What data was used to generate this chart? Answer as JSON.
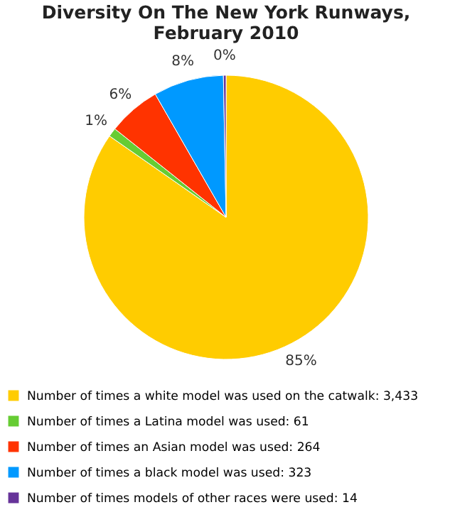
{
  "chart_data": {
    "type": "pie",
    "title": "Diversity On The New York Runways, February 2010",
    "categories": [
      "Number of times a white model was used on the catwalk: 3,433",
      "Number of times a Latina model was used: 61",
      "Number of times an Asian model was used: 264",
      "Number of times a black model was used: 323",
      "Number of times models of other races were used: 14"
    ],
    "values": [
      84.7,
      1,
      6,
      8,
      0.3
    ],
    "colors": [
      "#ffcc00",
      "#66cc33",
      "#ff3300",
      "#0099ff",
      "#663399"
    ],
    "value_labels": [
      "85%",
      "1%",
      "6%",
      "8%",
      "0%"
    ],
    "legend": "bottom"
  }
}
